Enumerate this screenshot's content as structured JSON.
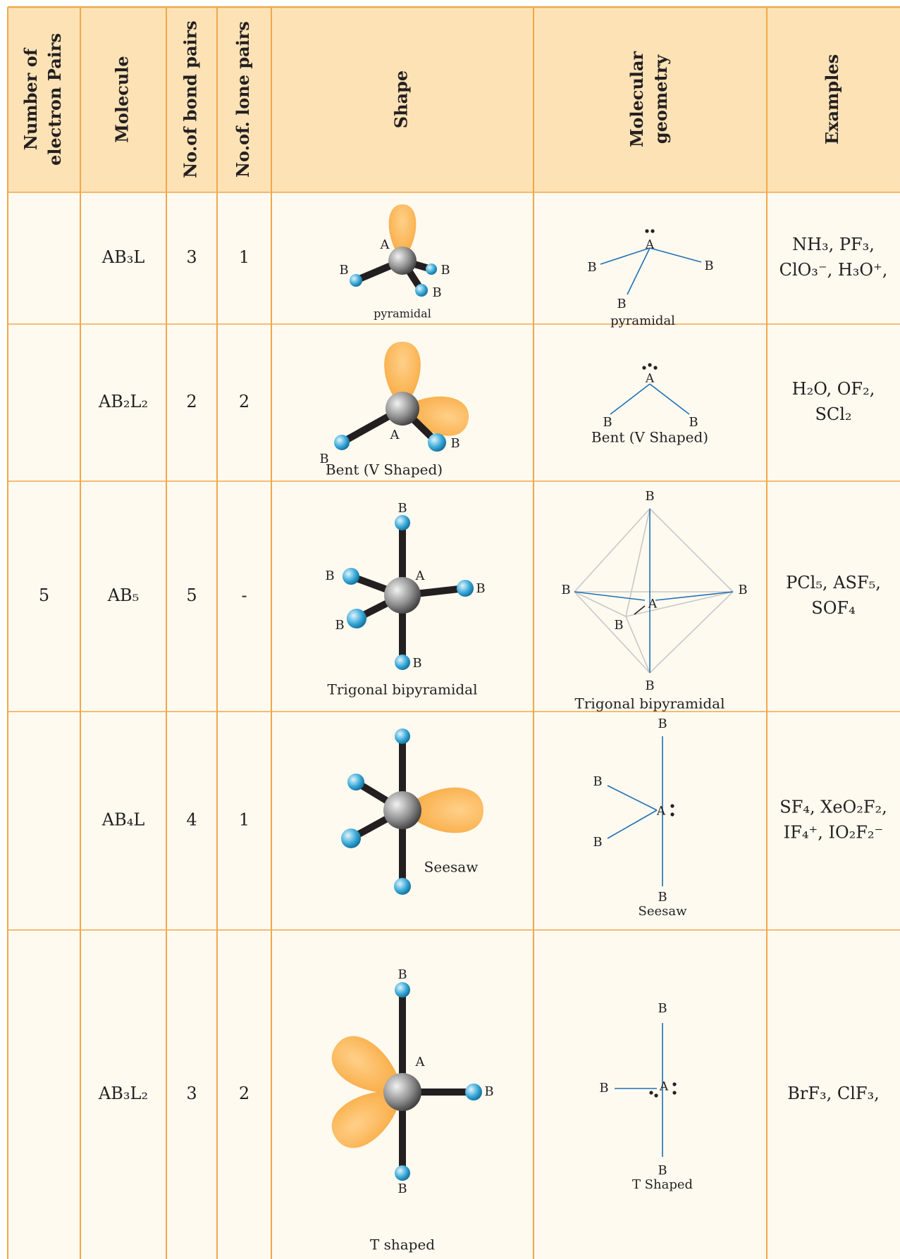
{
  "table": {
    "header": [
      [
        "Number of",
        "electron Pairs"
      ],
      [
        "Molecule"
      ],
      [
        "No.of bond pairs"
      ],
      [
        "No.of. lone pairs"
      ],
      [
        "Shape"
      ],
      [
        "Molecular",
        "geometry"
      ],
      [
        "Examples"
      ]
    ],
    "rows": [
      {
        "molecule": "AB₃L",
        "bond_pairs": "3",
        "lone_pairs": "1",
        "shape": {
          "labels": [
            "A",
            "B",
            "B",
            "B"
          ],
          "caption": "pyramidal"
        },
        "geometry": {
          "labels": [
            "A",
            "B",
            "B",
            "B"
          ],
          "caption": "pyramidal"
        },
        "examples": [
          "NH₃, PF₃,",
          "ClO₃⁻, H₃O⁺,"
        ]
      },
      {
        "molecule": "AB₂L₂",
        "bond_pairs": "2",
        "lone_pairs": "2",
        "shape": {
          "labels": [
            "A",
            "B",
            "B"
          ],
          "caption": "Bent (V Shaped)"
        },
        "geometry": {
          "labels": [
            "A",
            "B",
            "B"
          ],
          "caption": "Bent (V Shaped)"
        },
        "examples": [
          "H₂O, OF₂,",
          "SCl₂"
        ]
      },
      {
        "electron_pairs": "5",
        "molecule": "AB₅",
        "bond_pairs": "5",
        "lone_pairs": "-",
        "shape": {
          "labels": [
            "B",
            "A",
            "B",
            "B",
            "B",
            "B"
          ],
          "caption": "Trigonal bipyramidal"
        },
        "geometry": {
          "labels": [
            "B",
            "B",
            "B",
            "B",
            "A",
            "B"
          ],
          "caption": "Trigonal bipyramidal"
        },
        "examples": [
          "PCl₅, ASF₅,",
          "SOF₄"
        ]
      },
      {
        "molecule": "AB₄L",
        "bond_pairs": "4",
        "lone_pairs": "1",
        "shape": {
          "caption": "Seesaw"
        },
        "geometry": {
          "labels": [
            "B",
            "B",
            "B",
            "A",
            "B"
          ],
          "caption": "Seesaw"
        },
        "examples": [
          "SF₄, XeO₂F₂,",
          "IF₄⁺, IO₂F₂⁻"
        ]
      },
      {
        "molecule": "AB₃L₂",
        "bond_pairs": "3",
        "lone_pairs": "2",
        "shape": {
          "labels": [
            "B",
            "A",
            "B",
            "B"
          ],
          "caption": "T shaped"
        },
        "geometry": {
          "labels": [
            "B",
            "B",
            "A",
            "B"
          ],
          "caption": "T Shaped"
        },
        "examples": [
          "BrF₃, ClF₃,"
        ]
      }
    ]
  }
}
